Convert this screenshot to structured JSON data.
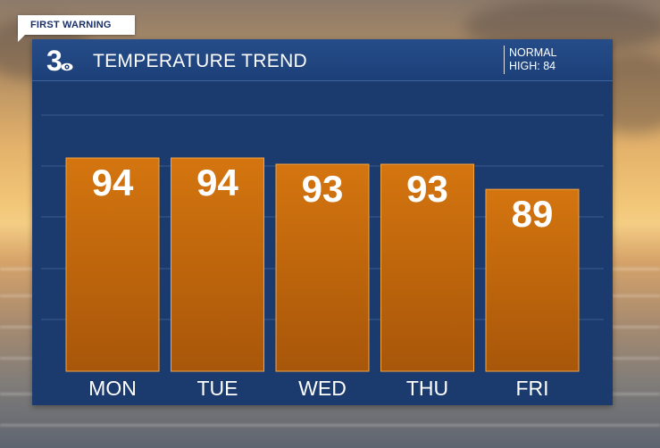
{
  "badge": {
    "label": "FIRST WARNING"
  },
  "header": {
    "logo_text": "3",
    "title": "TEMPERATURE TREND",
    "normal_line1": "NORMAL",
    "normal_line2": "HIGH: 84"
  },
  "colors": {
    "panel": "#1b3a6d",
    "header": "#264d89",
    "bar": "#d4750f",
    "bar_dark": "#a8560a",
    "text": "#ffffff"
  },
  "chart_data": {
    "type": "bar",
    "title": "TEMPERATURE TREND",
    "categories": [
      "MON",
      "TUE",
      "WED",
      "THU",
      "FRI"
    ],
    "values": [
      94,
      94,
      93,
      93,
      89
    ],
    "value_labels": [
      "94",
      "94",
      "93",
      "93",
      "89"
    ],
    "ylim": [
      0,
      100
    ],
    "grid": true,
    "legend": "none",
    "xlabel": "",
    "ylabel": ""
  }
}
